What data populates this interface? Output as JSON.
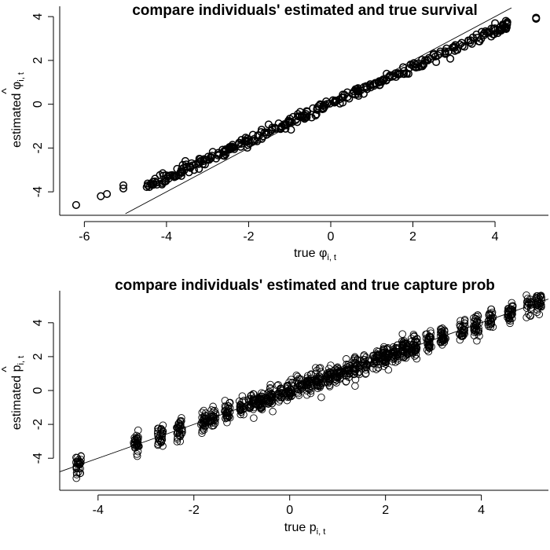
{
  "chart_data": [
    {
      "type": "scatter",
      "title": "compare individuals' estimated and true survival",
      "xlabel": {
        "main": "true φ",
        "subscript": "i, t"
      },
      "ylabel": {
        "main": "estimated φ",
        "hat": "^",
        "subscript": "i, t"
      },
      "xlim": [
        -6.6,
        5.3
      ],
      "ylim": [
        -5.0,
        4.4
      ],
      "xticks": [
        -6,
        -4,
        -2,
        0,
        2,
        4
      ],
      "yticks": [
        -4,
        -2,
        0,
        2,
        4
      ],
      "reference_line": {
        "slope": 1,
        "intercept": 0
      },
      "fit": {
        "slope": 0.84,
        "intercept": 0.02,
        "noise_sd": 0.11,
        "n_points": 360
      },
      "x_range_bulk": [
        -4.5,
        4.3
      ],
      "extra_points": [
        [
          -6.2,
          -4.6
        ],
        [
          -5.6,
          -4.2
        ],
        [
          -5.45,
          -4.1
        ],
        [
          -5.05,
          -3.85
        ],
        [
          -5.05,
          -3.7
        ],
        [
          4.0,
          3.7
        ],
        [
          4.2,
          3.6
        ],
        [
          4.3,
          3.75
        ],
        [
          5.0,
          3.95
        ],
        [
          5.0,
          3.9
        ]
      ]
    },
    {
      "type": "scatter",
      "title": "compare individuals' estimated and true capture prob",
      "xlabel": {
        "main": "true p",
        "subscript": "i, t"
      },
      "ylabel": {
        "main": "estimated p",
        "hat": "^",
        "subscript": "i, t"
      },
      "xlim": [
        -4.8,
        5.4
      ],
      "ylim": [
        -5.8,
        5.8
      ],
      "xticks": [
        -4,
        -2,
        0,
        2,
        4
      ],
      "yticks": [
        -4,
        -2,
        0,
        2,
        4
      ],
      "reference_line": {
        "slope": 1,
        "intercept": 0
      },
      "fit": {
        "slope": 1.0,
        "intercept": 0.0,
        "noise_sd": 0.3,
        "n_points": 1100
      },
      "x_clusters": [
        -4.4,
        -3.2,
        -2.7,
        -2.3,
        -1.8,
        -1.6,
        -1.3,
        -1.0,
        -0.8,
        -0.6,
        -0.4,
        -0.2,
        0.0,
        0.2,
        0.4,
        0.6,
        0.8,
        1.0,
        1.2,
        1.4,
        1.6,
        1.8,
        2.0,
        2.2,
        2.4,
        2.6,
        2.9,
        3.2,
        3.6,
        3.9,
        4.2,
        4.6,
        5.0,
        5.2
      ]
    }
  ]
}
